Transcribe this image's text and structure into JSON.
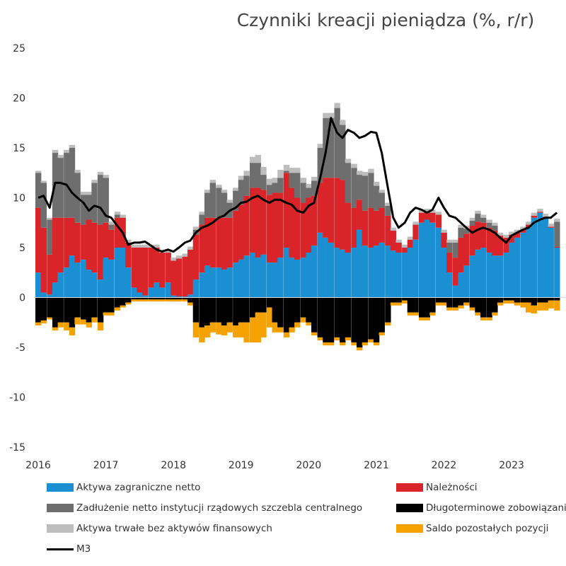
{
  "chart_data": {
    "type": "bar",
    "subtype": "stacked-bar-with-line",
    "title": "Czynniki kreacji pieniądza (%, r/r)",
    "xlabel": "",
    "ylabel": "",
    "ylim": [
      -15,
      25
    ],
    "yticks": [
      -15,
      -10,
      -5,
      0,
      5,
      10,
      15,
      20,
      25
    ],
    "xlim": [
      2016,
      2023.7
    ],
    "xticks": [
      "2016",
      "2017",
      "2018",
      "2019",
      "2020",
      "2021",
      "2022",
      "2023"
    ],
    "grid": false,
    "legend_position": "bottom",
    "x": [
      2016.0,
      2016.08,
      2016.17,
      2016.25,
      2016.33,
      2016.42,
      2016.5,
      2016.58,
      2016.67,
      2016.75,
      2016.83,
      2016.92,
      2017.0,
      2017.08,
      2017.17,
      2017.25,
      2017.33,
      2017.42,
      2017.5,
      2017.58,
      2017.67,
      2017.75,
      2017.83,
      2017.92,
      2018.0,
      2018.08,
      2018.17,
      2018.25,
      2018.33,
      2018.42,
      2018.5,
      2018.58,
      2018.67,
      2018.75,
      2018.83,
      2018.92,
      2019.0,
      2019.08,
      2019.17,
      2019.25,
      2019.33,
      2019.42,
      2019.5,
      2019.58,
      2019.67,
      2019.75,
      2019.83,
      2019.92,
      2020.0,
      2020.08,
      2020.17,
      2020.25,
      2020.33,
      2020.42,
      2020.5,
      2020.58,
      2020.67,
      2020.75,
      2020.83,
      2020.92,
      2021.0,
      2021.08,
      2021.17,
      2021.25,
      2021.33,
      2021.42,
      2021.5,
      2021.58,
      2021.67,
      2021.75,
      2021.83,
      2021.92,
      2022.0,
      2022.08,
      2022.17,
      2022.25,
      2022.33,
      2022.42,
      2022.5,
      2022.58,
      2022.67,
      2022.75,
      2022.83,
      2022.92,
      2023.0,
      2023.08,
      2023.17,
      2023.25,
      2023.33,
      2023.42,
      2023.5,
      2023.58,
      2023.67
    ],
    "series": [
      {
        "name": "Aktywa zagraniczne netto",
        "color": "#1a8fd1",
        "values": [
          2.5,
          0.5,
          0.3,
          1.5,
          2.5,
          3.0,
          4.2,
          3.5,
          3.8,
          2.8,
          2.5,
          1.8,
          4.0,
          3.8,
          5.0,
          5.0,
          3.0,
          1.0,
          0.5,
          0.2,
          1.0,
          1.5,
          1.0,
          1.5,
          0.2,
          0.1,
          0.1,
          0.3,
          1.8,
          2.5,
          3.2,
          3.0,
          3.0,
          2.8,
          3.0,
          3.5,
          3.8,
          4.2,
          4.5,
          4.0,
          4.3,
          3.5,
          3.5,
          4.0,
          5.0,
          4.0,
          3.8,
          4.0,
          4.5,
          5.2,
          6.5,
          6.0,
          5.5,
          5.0,
          4.8,
          4.5,
          5.0,
          6.8,
          5.2,
          5.0,
          5.2,
          5.5,
          5.2,
          4.7,
          4.5,
          4.5,
          5.0,
          5.8,
          7.5,
          7.8,
          7.5,
          7.0,
          5.0,
          2.5,
          1.2,
          2.5,
          3.2,
          4.2,
          4.8,
          5.0,
          4.5,
          4.2,
          4.2,
          4.5,
          5.5,
          6.0,
          6.5,
          7.0,
          8.0,
          8.5,
          8.0,
          7.0,
          5.0
        ]
      },
      {
        "name": "Należności",
        "color": "#d9252a",
        "values": [
          6.5,
          6.5,
          4.0,
          6.5,
          5.5,
          5.0,
          3.8,
          4.0,
          3.5,
          5.0,
          5.0,
          5.5,
          3.5,
          3.0,
          3.0,
          3.0,
          2.5,
          4.0,
          4.5,
          4.8,
          4.0,
          3.5,
          3.5,
          3.0,
          3.5,
          3.8,
          4.0,
          4.5,
          4.5,
          4.8,
          4.8,
          5.0,
          5.0,
          5.2,
          5.0,
          5.2,
          5.5,
          6.0,
          6.5,
          7.0,
          6.5,
          6.8,
          7.0,
          6.5,
          7.5,
          7.0,
          6.2,
          5.5,
          5.5,
          5.0,
          5.0,
          6.0,
          6.5,
          7.0,
          7.0,
          5.0,
          4.0,
          3.0,
          3.5,
          4.0,
          3.5,
          3.5,
          3.0,
          2.0,
          1.0,
          0.5,
          0.8,
          1.5,
          1.0,
          0.8,
          1.0,
          1.3,
          1.5,
          2.0,
          2.8,
          3.5,
          3.2,
          3.0,
          2.8,
          2.5,
          2.5,
          2.5,
          2.0,
          1.5,
          0.8,
          0.5,
          0.3,
          0.3,
          0.2,
          0.1,
          0.1,
          0.1,
          0.1
        ]
      },
      {
        "name": "Zadłużenie netto instytucji rządowych szczebla centralnego",
        "color": "#6e6e6e",
        "values": [
          3.5,
          4.5,
          3.5,
          6.5,
          6.0,
          6.5,
          7.0,
          5.0,
          3.0,
          2.5,
          4.0,
          5.0,
          4.5,
          0.5,
          0.3,
          0.0,
          0.0,
          0.0,
          0.0,
          0.0,
          0.0,
          0.0,
          0.0,
          0.0,
          0.0,
          0.0,
          0.0,
          0.0,
          0.5,
          1.0,
          2.5,
          3.5,
          3.0,
          2.5,
          1.5,
          2.0,
          2.5,
          2.0,
          2.5,
          2.5,
          1.5,
          1.0,
          1.0,
          1.5,
          0.2,
          1.5,
          2.5,
          2.0,
          1.0,
          1.5,
          3.5,
          6.0,
          6.0,
          7.0,
          5.5,
          4.0,
          4.0,
          2.5,
          3.5,
          3.5,
          2.5,
          1.5,
          1.0,
          0.0,
          0.0,
          0.0,
          0.0,
          0.0,
          0.0,
          0.0,
          0.0,
          0.0,
          0.0,
          1.0,
          1.5,
          1.0,
          0.5,
          0.5,
          0.8,
          0.5,
          0.5,
          0.5,
          0.0,
          0.0,
          0.0,
          0.0,
          0.0,
          0.0,
          0.0,
          0.0,
          0.0,
          0.0,
          2.5
        ]
      },
      {
        "name": "Aktywa trwałe bez aktywów finansowych",
        "color": "#bdbdbd",
        "values": [
          0.2,
          0.2,
          0.2,
          0.3,
          0.3,
          0.3,
          0.3,
          0.3,
          0.3,
          0.3,
          0.3,
          0.3,
          0.3,
          0.3,
          0.3,
          0.3,
          0.3,
          0.3,
          0.3,
          0.3,
          0.3,
          0.3,
          0.3,
          0.3,
          0.3,
          0.3,
          0.3,
          0.3,
          0.3,
          0.3,
          0.3,
          0.3,
          0.3,
          0.3,
          0.3,
          0.3,
          0.4,
          0.5,
          0.6,
          0.8,
          0.8,
          0.6,
          0.5,
          0.8,
          0.6,
          0.5,
          0.5,
          0.5,
          0.4,
          0.4,
          0.4,
          0.5,
          0.5,
          0.5,
          0.5,
          0.4,
          0.4,
          0.4,
          0.4,
          0.4,
          0.4,
          0.3,
          0.3,
          0.3,
          0.3,
          0.3,
          0.3,
          0.3,
          0.3,
          0.3,
          0.3,
          0.3,
          0.3,
          0.3,
          0.3,
          0.3,
          0.3,
          0.3,
          0.3,
          0.3,
          0.3,
          0.3,
          0.3,
          0.3,
          0.3,
          0.3,
          0.3,
          0.3,
          0.3,
          0.3,
          0.3,
          0.3,
          0.3
        ]
      },
      {
        "name": "Długoterminowe zobowiązania",
        "color": "#000000",
        "values": [
          -2.5,
          -2.3,
          -2.0,
          -3.0,
          -2.5,
          -2.5,
          -3.0,
          -2.0,
          -2.2,
          -2.5,
          -2.0,
          -2.5,
          -1.5,
          -1.5,
          -1.0,
          -0.8,
          -0.5,
          -0.2,
          -0.2,
          -0.2,
          -0.2,
          -0.2,
          -0.2,
          -0.2,
          -0.2,
          -0.2,
          -0.2,
          -0.5,
          -2.5,
          -3.0,
          -2.8,
          -2.5,
          -2.5,
          -2.8,
          -2.5,
          -2.8,
          -2.5,
          -2.5,
          -2.0,
          -1.5,
          -1.5,
          -1.0,
          -2.5,
          -3.0,
          -3.5,
          -3.0,
          -2.5,
          -2.0,
          -2.5,
          -3.5,
          -4.0,
          -4.5,
          -4.5,
          -4.0,
          -4.5,
          -4.0,
          -4.5,
          -5.0,
          -4.5,
          -4.2,
          -4.5,
          -3.5,
          -2.5,
          -0.5,
          -0.5,
          -0.3,
          -1.5,
          -1.5,
          -2.0,
          -2.0,
          -1.5,
          -0.5,
          -0.5,
          -1.0,
          -1.0,
          -0.8,
          -0.5,
          -1.0,
          -1.5,
          -2.0,
          -2.0,
          -1.5,
          -0.5,
          -0.3,
          -0.3,
          -0.5,
          -0.5,
          -0.5,
          -0.8,
          -0.5,
          -0.5,
          -0.3,
          -0.3
        ]
      },
      {
        "name": "Saldo pozostałych pozycji",
        "color": "#f5a100",
        "values": [
          -0.3,
          -0.3,
          -0.2,
          -0.3,
          -0.5,
          -0.8,
          -0.8,
          -0.7,
          -0.5,
          -0.5,
          -0.5,
          -0.8,
          -0.3,
          -0.3,
          -0.3,
          -0.2,
          -0.2,
          -0.2,
          -0.2,
          -0.2,
          -0.2,
          -0.2,
          -0.2,
          -0.2,
          -0.2,
          -0.2,
          -0.2,
          -0.3,
          -1.5,
          -1.5,
          -1.2,
          -1.0,
          -1.2,
          -1.0,
          -1.0,
          -1.2,
          -1.5,
          -2.0,
          -2.5,
          -3.0,
          -2.5,
          -2.0,
          -1.0,
          -0.5,
          -0.5,
          -0.5,
          -0.5,
          -0.5,
          -0.3,
          -0.3,
          -0.3,
          -0.3,
          -0.3,
          -0.3,
          -0.3,
          -0.3,
          -0.3,
          -0.3,
          -0.3,
          -0.3,
          -0.3,
          -0.3,
          -0.3,
          -0.3,
          -0.3,
          -0.3,
          -0.3,
          -0.3,
          -0.3,
          -0.3,
          -0.3,
          -0.3,
          -0.3,
          -0.3,
          -0.3,
          -0.3,
          -0.3,
          -0.3,
          -0.3,
          -0.3,
          -0.3,
          -0.3,
          -0.3,
          -0.3,
          -0.3,
          -0.3,
          -0.5,
          -1.0,
          -0.8,
          -0.8,
          -0.8,
          -0.8,
          -1.0
        ]
      },
      {
        "name": "M3",
        "type": "line",
        "color": "#000000",
        "values": [
          10.0,
          10.2,
          9.0,
          11.5,
          11.5,
          11.3,
          10.5,
          10.0,
          9.5,
          8.7,
          9.2,
          9.0,
          8.2,
          8.0,
          7.2,
          6.5,
          5.3,
          5.5,
          5.5,
          5.6,
          5.2,
          4.8,
          4.6,
          4.8,
          4.6,
          5.0,
          5.5,
          5.7,
          6.5,
          7.0,
          7.2,
          7.5,
          8.0,
          8.2,
          8.7,
          9.0,
          9.5,
          9.6,
          10.0,
          10.2,
          9.8,
          9.5,
          9.8,
          9.8,
          9.5,
          9.3,
          8.7,
          8.5,
          9.2,
          9.5,
          12.0,
          14.5,
          18.0,
          16.5,
          16.0,
          16.8,
          16.5,
          16.0,
          16.2,
          16.6,
          16.5,
          14.5,
          11.0,
          8.0,
          7.0,
          7.5,
          8.5,
          9.0,
          8.8,
          8.5,
          8.8,
          10.0,
          9.0,
          8.2,
          8.0,
          7.5,
          7.0,
          6.5,
          6.8,
          7.0,
          6.8,
          6.5,
          6.0,
          5.5,
          6.2,
          6.5,
          6.8,
          7.0,
          7.5,
          7.8,
          8.0,
          8.0,
          8.5
        ]
      }
    ]
  },
  "legend": [
    {
      "label": "Aktywa zagraniczne netto",
      "color": "#1a8fd1",
      "kind": "bar"
    },
    {
      "label": "Należności",
      "color": "#d9252a",
      "kind": "bar"
    },
    {
      "label": "Zadłużenie netto instytucji rządowych szczebla centralnego",
      "color": "#6e6e6e",
      "kind": "bar"
    },
    {
      "label": "Długoterminowe zobowiązania",
      "color": "#000000",
      "kind": "bar"
    },
    {
      "label": "Aktywa trwałe bez aktywów finansowych",
      "color": "#bdbdbd",
      "kind": "bar"
    },
    {
      "label": "Saldo pozostałych pozycji",
      "color": "#f5a100",
      "kind": "bar"
    },
    {
      "label": "M3",
      "color": "#000000",
      "kind": "line"
    }
  ]
}
